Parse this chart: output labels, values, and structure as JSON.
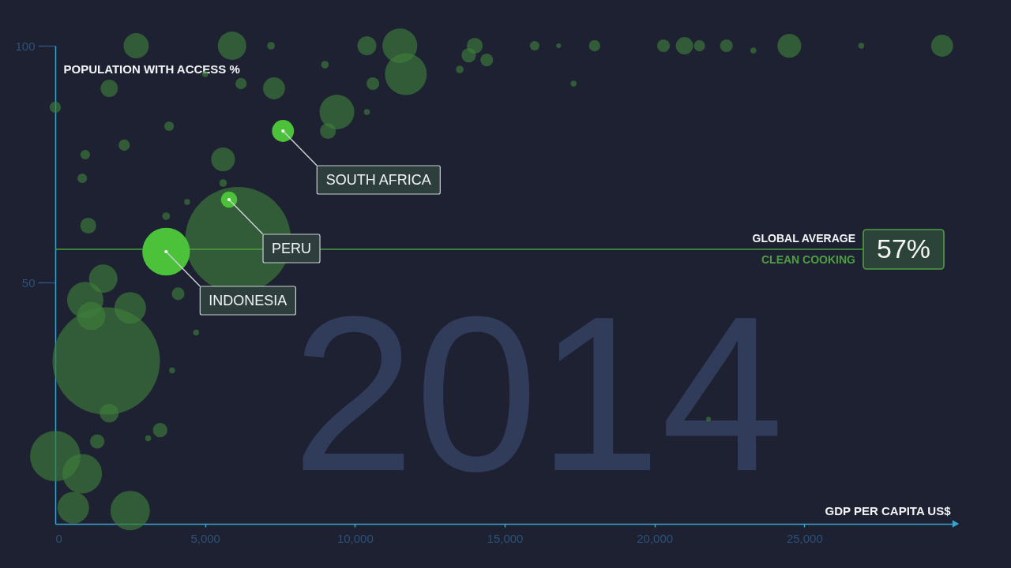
{
  "chart_data": {
    "type": "bubble",
    "ylabel": "POPULATION WITH ACCESS %",
    "xlabel": "GDP PER CAPITA US$",
    "xlim": [
      0,
      30000
    ],
    "xticks": [
      0,
      {
        "value": 5000,
        "label": "5,000"
      },
      {
        "value": 10000,
        "label": "10,000"
      },
      {
        "value": 15000,
        "label": "15,000"
      },
      {
        "value": 20000,
        "label": "20,000"
      },
      {
        "value": 25000,
        "label": "25,000"
      }
    ],
    "ylim": [
      -1,
      100
    ],
    "yticks": [
      50,
      100
    ],
    "marker": "circle",
    "series": [
      {
        "color": "#335c37",
        "x": [
          1700,
          6100,
          0,
          900,
          2500,
          600,
          11700,
          1000,
          2500,
          1200,
          1600,
          11500,
          9400,
          5900,
          2700,
          5600,
          24500,
          7300,
          29600,
          10400,
          1800,
          1800,
          21000,
          14000,
          9100,
          1100,
          13800,
          3500,
          1400,
          14400,
          10600,
          4100,
          20300,
          22400,
          6200,
          0,
          2300,
          18000,
          21500,
          3800,
          1000,
          900,
          16000,
          7200,
          13500,
          9000,
          5600,
          3700,
          5000,
          10400,
          4400,
          3100,
          4700,
          3900,
          23300,
          26900,
          17300,
          16800,
          21800
        ],
        "values": [
          33.4,
          59,
          13.3,
          9.6,
          1.8,
          2.4,
          94,
          46.3,
          44.6,
          42.9,
          50.8,
          100,
          86,
          100,
          100,
          76,
          100,
          91,
          100,
          100,
          22.4,
          91,
          100,
          100,
          82,
          62,
          98,
          18.8,
          16.4,
          97,
          92,
          47.6,
          100,
          100,
          92,
          87,
          79,
          100,
          100,
          83,
          77,
          72,
          100,
          100,
          95,
          96,
          71,
          64,
          94,
          86,
          67,
          17.1,
          39.4,
          31.4,
          99,
          100,
          92,
          100,
          21.1
        ],
        "sizes": [
          1,
          0.97,
          0.22,
          0.135,
          0.135,
          0.087,
          0.152,
          0.114,
          0.087,
          0.07,
          0.07,
          0.105,
          0.105,
          0.07,
          0.055,
          0.049,
          0.049,
          0.042,
          0.042,
          0.031,
          0.031,
          0.026,
          0.026,
          0.022,
          0.022,
          0.022,
          0.018,
          0.018,
          0.018,
          0.014,
          0.014,
          0.014,
          0.014,
          0.014,
          0.011,
          0.011,
          0.011,
          0.011,
          0.011,
          0.008,
          0.008,
          0.008,
          0.008,
          0.005,
          0.005,
          0.005,
          0.005,
          0.005,
          0.003,
          0.003,
          0.003,
          0.003,
          0.003,
          0.003,
          0.003,
          0.003,
          0.003,
          0.002,
          0.002
        ]
      },
      {
        "color": "#4cc23a",
        "x": [
          3700,
          5800,
          7600
        ],
        "values": [
          56.5,
          67.5,
          82
        ],
        "sizes": [
          0.197,
          0.023,
          0.042
        ]
      }
    ],
    "ref_lines": [
      {
        "axis": "y",
        "value": 57,
        "label": "57%",
        "color": "#4e9e42"
      }
    ],
    "annotations": [
      "2014",
      "GLOBAL AVERAGE",
      "CLEAN COOKING",
      {
        "text": "SOUTH AFRICA",
        "x": 7600,
        "y": 82
      },
      {
        "text": "PERU",
        "x": 5800,
        "y": 67.5
      },
      {
        "text": "INDONESIA",
        "x": 3700,
        "y": 56.5
      }
    ]
  }
}
